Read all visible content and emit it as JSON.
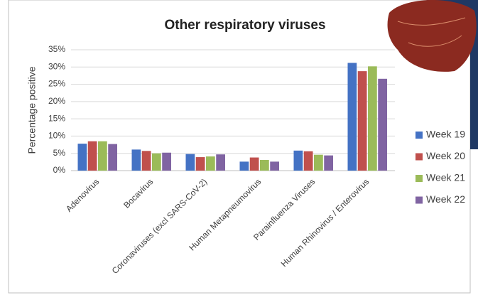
{
  "chart_data": {
    "type": "bar",
    "title": "Other respiratory viruses",
    "y_label": "Percentage positive",
    "categories": [
      "Adenovirus",
      "Bocavirus",
      "Coronaviruses (excl SARS-CoV-2)",
      "Human Metapneumovirus",
      "Parainfluenza Viruses",
      "Human Rhinovirus / Enterovirus"
    ],
    "series": [
      {
        "name": "Week 19",
        "color": "#4472c4",
        "values": [
          7.8,
          6.1,
          4.8,
          2.6,
          5.8,
          31.2
        ]
      },
      {
        "name": "Week 20",
        "color": "#c0504d",
        "values": [
          8.5,
          5.7,
          3.9,
          3.8,
          5.6,
          28.8
        ]
      },
      {
        "name": "Week 21",
        "color": "#9bbb59",
        "values": [
          8.5,
          5.0,
          4.1,
          3.1,
          4.6,
          30.2
        ]
      },
      {
        "name": "Week 22",
        "color": "#8064a2",
        "values": [
          7.7,
          5.2,
          4.7,
          2.6,
          4.4,
          26.6
        ]
      }
    ],
    "ylim": [
      0,
      35
    ],
    "yticks": [
      {
        "value": 0,
        "label": "0%"
      },
      {
        "value": 5,
        "label": "5%"
      },
      {
        "value": 10,
        "label": "10%"
      },
      {
        "value": 15,
        "label": "15%"
      },
      {
        "value": 20,
        "label": "20%"
      },
      {
        "value": 25,
        "label": "25%"
      },
      {
        "value": 30,
        "label": "30%"
      },
      {
        "value": 35,
        "label": "35%"
      }
    ],
    "grid": true,
    "legend": "right"
  }
}
